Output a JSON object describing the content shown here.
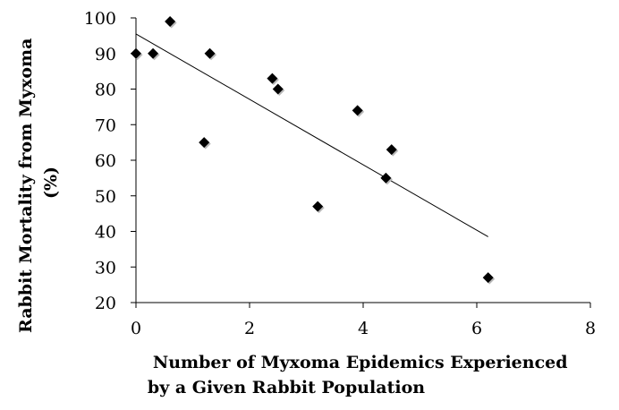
{
  "chart_data": {
    "type": "scatter",
    "title": "",
    "xlabel": [
      "Number of Myxoma Epidemics Experienced",
      "by a Given Rabbit Population"
    ],
    "ylabel": [
      "Rabbit Mortality from Myxoma",
      "(%)"
    ],
    "xlim": [
      0,
      8
    ],
    "ylim": [
      20,
      100
    ],
    "xticks": [
      "0",
      "2",
      "4",
      "6",
      "8"
    ],
    "yticks": [
      "20",
      "30",
      "40",
      "50",
      "60",
      "70",
      "80",
      "90",
      "100"
    ],
    "grid": false,
    "legend": "none",
    "marker": "diamond",
    "marker_color": "#000000",
    "series": [
      {
        "points": [
          {
            "x": 0,
            "y": 90
          },
          {
            "x": 0.3,
            "y": 90
          },
          {
            "x": 0.6,
            "y": 99
          },
          {
            "x": 1.2,
            "y": 65
          },
          {
            "x": 1.3,
            "y": 90
          },
          {
            "x": 2.4,
            "y": 83
          },
          {
            "x": 2.5,
            "y": 80
          },
          {
            "x": 3.2,
            "y": 47
          },
          {
            "x": 3.9,
            "y": 74
          },
          {
            "x": 4.4,
            "y": 55
          },
          {
            "x": 4.5,
            "y": 63
          },
          {
            "x": 6.2,
            "y": 27
          }
        ]
      }
    ],
    "trendline": {
      "type": "linear",
      "x": [
        0,
        6.2
      ],
      "y": [
        95.5,
        38.5
      ]
    }
  }
}
